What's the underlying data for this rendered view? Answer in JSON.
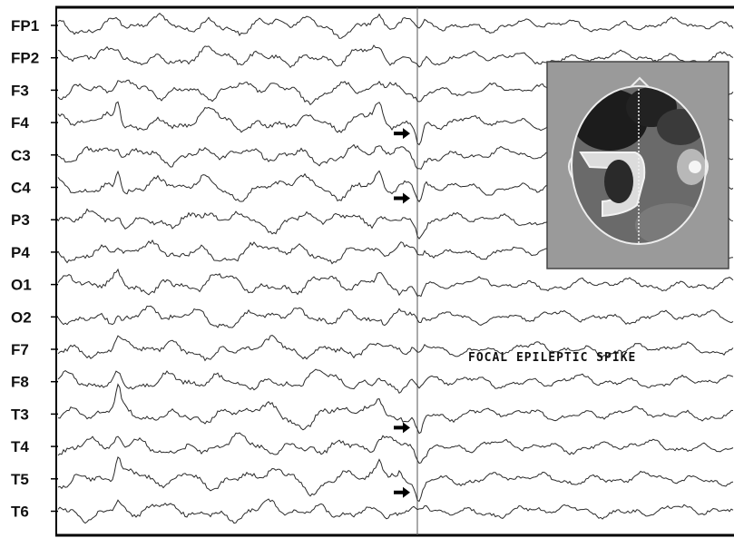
{
  "channels": [
    "FP1",
    "FP2",
    "F3",
    "F4",
    "C3",
    "C4",
    "P3",
    "P4",
    "O1",
    "O2",
    "F7",
    "F8",
    "T3",
    "T4",
    "T5",
    "T6"
  ],
  "annotation": "FOCAL EPILEPTIC SPIKE",
  "spike_markers": [
    "F4",
    "C4",
    "T3",
    "T5"
  ],
  "colors": {
    "trace": "#2a2a2a",
    "frame": "#000000",
    "inset_bg": "#9a9a9a",
    "head_dark": "#1c1c1c",
    "head_mid": "#5a5a5a",
    "head_light": "#e8e8e8"
  },
  "icons": {
    "marker": "right-arrow-icon",
    "topography": "scalp-topography-map"
  }
}
